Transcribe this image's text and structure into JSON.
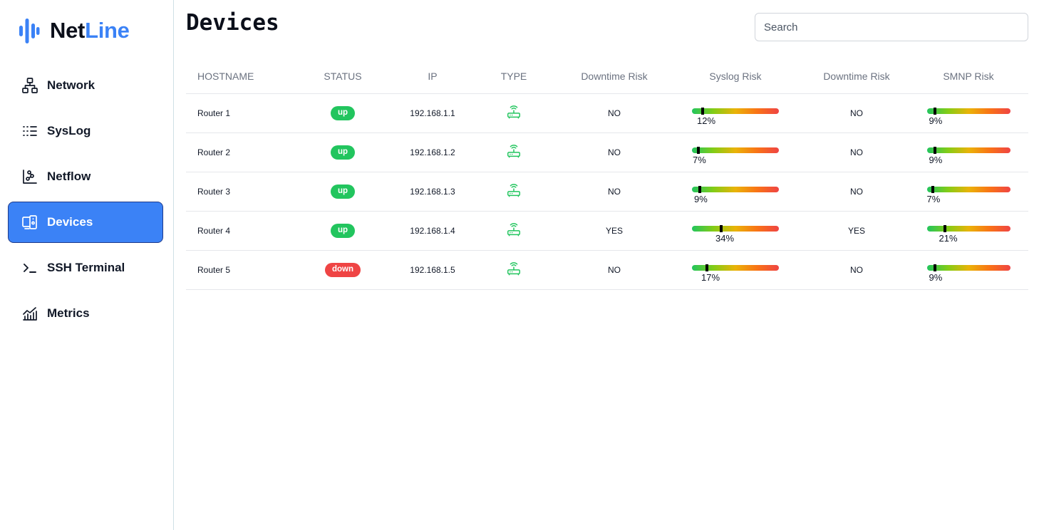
{
  "brand": {
    "name_part1": "Net",
    "name_part2": "Line",
    "accent": "#3b82f6"
  },
  "sidebar": {
    "items": [
      {
        "key": "network",
        "label": "Network",
        "icon": "network-icon",
        "active": false
      },
      {
        "key": "syslog",
        "label": "SysLog",
        "icon": "list-icon",
        "active": false
      },
      {
        "key": "netflow",
        "label": "Netflow",
        "icon": "chart-scatter-icon",
        "active": false
      },
      {
        "key": "devices",
        "label": "Devices",
        "icon": "devices-icon",
        "active": true
      },
      {
        "key": "ssh-terminal",
        "label": "SSH Terminal",
        "icon": "terminal-icon",
        "active": false
      },
      {
        "key": "metrics",
        "label": "Metrics",
        "icon": "bar-chart-icon",
        "active": false
      }
    ]
  },
  "page": {
    "title": "Devices"
  },
  "search": {
    "placeholder": "Search",
    "value": ""
  },
  "table": {
    "headers": [
      "HOSTNAME",
      "STATUS",
      "IP",
      "TYPE",
      "Downtime Risk",
      "Syslog Risk",
      "Downtime Risk",
      "SMNP Risk"
    ],
    "rows": [
      {
        "hostname": "Router 1",
        "status": "up",
        "ip": "192.168.1.1",
        "type_icon": "router-icon",
        "downtime_risk_1": "NO",
        "syslog_risk": 12,
        "syslog_risk_label": "12%",
        "downtime_risk_2": "NO",
        "smnp_risk": 9,
        "smnp_risk_label": "9%"
      },
      {
        "hostname": "Router 2",
        "status": "up",
        "ip": "192.168.1.2",
        "type_icon": "router-icon",
        "downtime_risk_1": "NO",
        "syslog_risk": 7,
        "syslog_risk_label": "7%",
        "downtime_risk_2": "NO",
        "smnp_risk": 9,
        "smnp_risk_label": "9%"
      },
      {
        "hostname": "Router 3",
        "status": "up",
        "ip": "192.168.1.3",
        "type_icon": "router-icon",
        "downtime_risk_1": "NO",
        "syslog_risk": 9,
        "syslog_risk_label": "9%",
        "downtime_risk_2": "NO",
        "smnp_risk": 7,
        "smnp_risk_label": "7%"
      },
      {
        "hostname": "Router 4",
        "status": "up",
        "ip": "192.168.1.4",
        "type_icon": "router-icon",
        "downtime_risk_1": "YES",
        "syslog_risk": 34,
        "syslog_risk_label": "34%",
        "downtime_risk_2": "YES",
        "smnp_risk": 21,
        "smnp_risk_label": "21%"
      },
      {
        "hostname": "Router 5",
        "status": "down",
        "ip": "192.168.1.5",
        "type_icon": "router-icon",
        "downtime_risk_1": "NO",
        "syslog_risk": 17,
        "syslog_risk_label": "17%",
        "downtime_risk_2": "NO",
        "smnp_risk": 9,
        "smnp_risk_label": "9%"
      }
    ]
  },
  "colors": {
    "status_up": "#22c55e",
    "status_down": "#ef4444",
    "router_icon": "#22c55e",
    "active_nav": "#3b82f6"
  }
}
